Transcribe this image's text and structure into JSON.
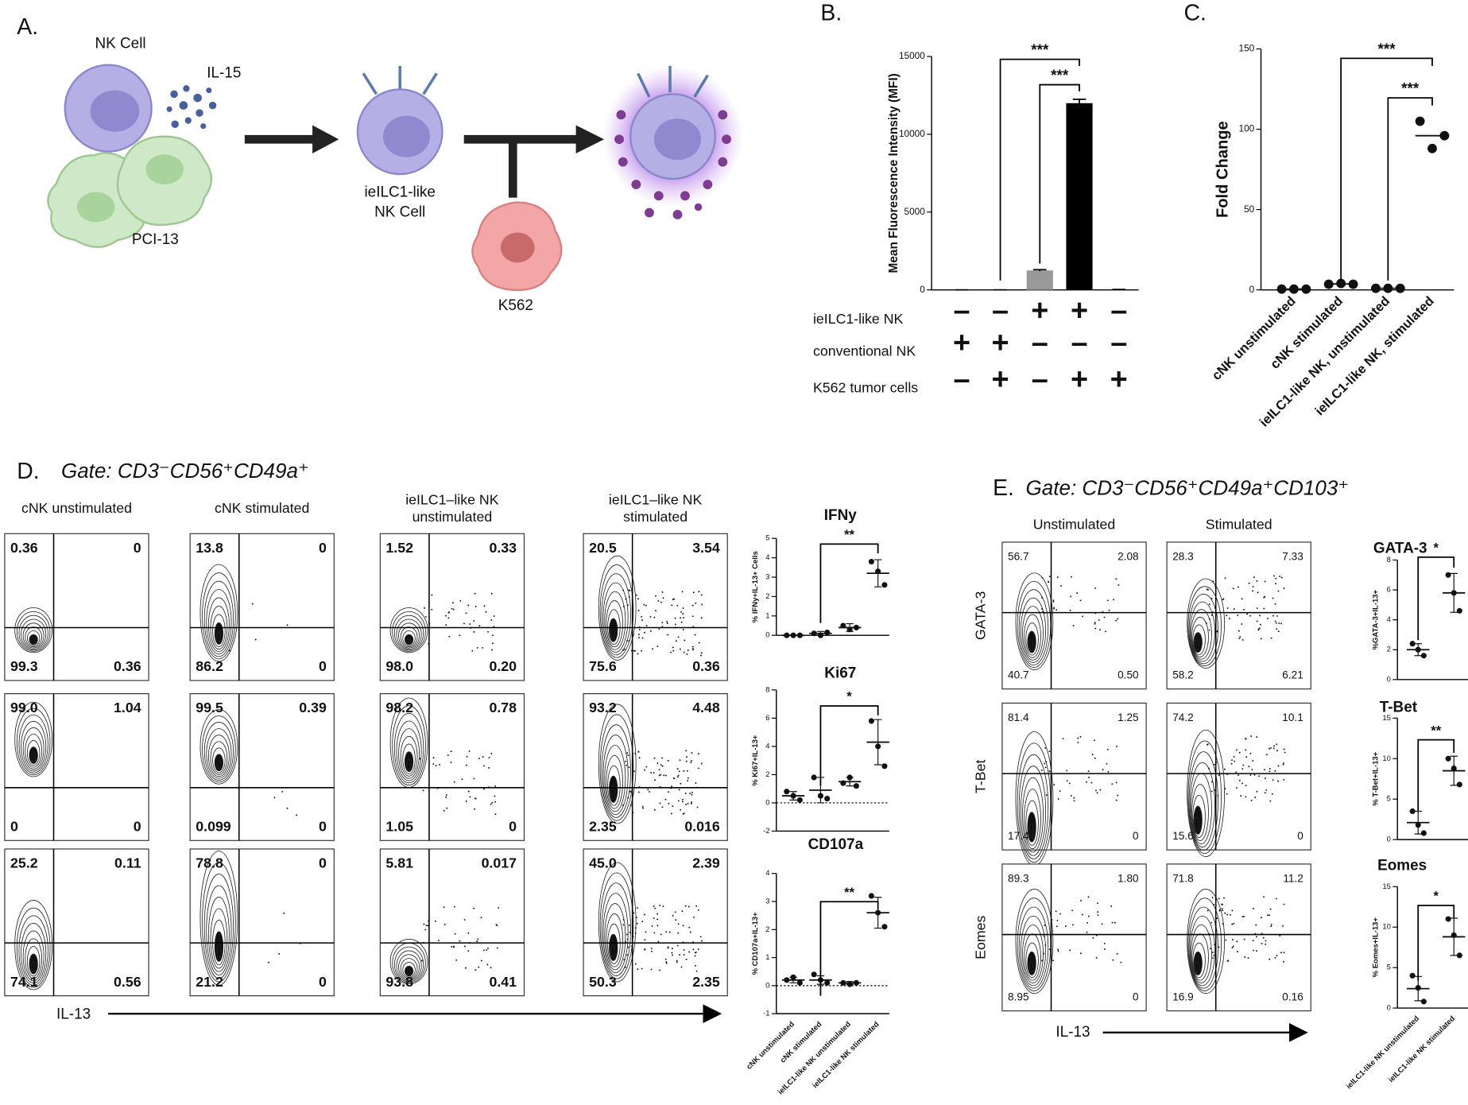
{
  "panel_a": {
    "label": "A.",
    "nk_cell": "NK Cell",
    "cytokine": "IL-15",
    "feeder": "PCI-13",
    "ilc_cell": [
      "ieILC1-like",
      "NK Cell"
    ],
    "target": "K562"
  },
  "chart_data": [
    {
      "type": "bar",
      "label": "B.",
      "y_label": "Mean Fluorescence Intensity (MFI)",
      "categories": [
        null,
        null,
        null,
        null,
        null
      ],
      "values": [
        0,
        0,
        1250,
        12000,
        30
      ],
      "errors": [
        0,
        0,
        50,
        250,
        0
      ],
      "colors": [
        "#000000",
        "#000000",
        "#999999",
        "#000000",
        "#000000"
      ],
      "ylim": [
        0,
        15000
      ],
      "yticks": [
        0,
        5000,
        10000,
        15000
      ],
      "significance": [
        "***",
        "***"
      ],
      "conditions": [
        {
          "label": "ieILC1-like NK",
          "signs": [
            "–",
            "–",
            "+",
            "+",
            "–"
          ]
        },
        {
          "label": "conventional NK",
          "signs": [
            "+",
            "+",
            "–",
            "–",
            "–"
          ]
        },
        {
          "label": "K562 tumor cells",
          "signs": [
            "–",
            "+",
            "–",
            "+",
            "+"
          ]
        }
      ]
    },
    {
      "type": "strip",
      "label": "C.",
      "y_label": "Fold Change",
      "categories": [
        "cNK unstimulated",
        "cNK stimulated",
        "ieILC1-like NK, unstimulated",
        "ieILC1-like NK, stimulated"
      ],
      "values": [
        [
          0.5,
          0.5,
          0.5
        ],
        [
          3.5,
          4,
          3.5
        ],
        [
          1,
          1,
          1
        ],
        [
          105,
          88,
          96
        ]
      ],
      "means": [
        0.5,
        3.7,
        1,
        96
      ],
      "ylim": [
        0,
        150
      ],
      "yticks": [
        0,
        50,
        100,
        150
      ],
      "significance": [
        "***",
        "***"
      ]
    },
    {
      "type": "strip",
      "title": "IFNy",
      "y_label": "% IFNy+IL-13+ Cells",
      "values": [
        [
          0,
          0,
          0
        ],
        [
          0.1,
          0,
          0.15
        ],
        [
          0.5,
          0.3,
          0.4
        ],
        [
          3.8,
          3.3,
          2.6
        ]
      ],
      "means": [
        0,
        0.1,
        0.4,
        3.2
      ],
      "errors": [
        0,
        0.1,
        0.2,
        0.7
      ],
      "ylim": [
        0,
        5
      ],
      "yticks": [
        0,
        1,
        2,
        3,
        4,
        5
      ],
      "significance": [
        "**"
      ]
    },
    {
      "type": "strip",
      "title": "Ki67",
      "y_label": "% Ki67+IL-13+",
      "values": [
        [
          0.8,
          0.5,
          0.2
        ],
        [
          1.8,
          0.5,
          0.3
        ],
        [
          1.4,
          1.8,
          1.2
        ],
        [
          5.8,
          4.0,
          2.6
        ]
      ],
      "means": [
        0.5,
        0.9,
        1.5,
        4.3
      ],
      "errors": [
        0.3,
        0.9,
        0.3,
        1.6
      ],
      "ylim": [
        -2,
        8
      ],
      "yticks": [
        -2,
        0,
        2,
        4,
        6,
        8
      ],
      "significance": [
        "*"
      ]
    },
    {
      "type": "strip",
      "title": "CD107a",
      "y_label": "% CD107a+IL-13+",
      "categories": [
        "cNK unstimulated",
        "cNK stimulated",
        "ieILC1-like NK unstimulated",
        "ieILC1-like NK stimulated"
      ],
      "values": [
        [
          0.2,
          0.3,
          0.1
        ],
        [
          0.4,
          0.2,
          0.1
        ],
        [
          0.1,
          0.05,
          0.1
        ],
        [
          3.2,
          2.6,
          2.1
        ]
      ],
      "means": [
        0.2,
        0.2,
        0.1,
        2.6
      ],
      "errors": [
        0.1,
        0.15,
        0.05,
        0.55
      ],
      "ylim": [
        -1,
        4
      ],
      "yticks": [
        -1,
        0,
        1,
        2,
        3,
        4
      ],
      "significance": [
        "**"
      ]
    },
    {
      "type": "strip",
      "title": "GATA-3",
      "y_label": "%GATA-3+IL-13+",
      "values": [
        [
          2.4,
          2.0,
          1.6
        ],
        [
          7.0,
          5.8,
          4.6
        ]
      ],
      "means": [
        2.0,
        5.8
      ],
      "errors": [
        0.4,
        1.3
      ],
      "ylim": [
        0,
        8
      ],
      "yticks": [
        0,
        2,
        4,
        6,
        8
      ],
      "significance": [
        "*"
      ]
    },
    {
      "type": "strip",
      "title": "T-Bet",
      "y_label": "% T-Bet+IL-13+",
      "values": [
        [
          3.5,
          1.8,
          0.8
        ],
        [
          10,
          8.8,
          6.8
        ]
      ],
      "means": [
        2.1,
        8.5
      ],
      "errors": [
        1.4,
        1.8
      ],
      "ylim": [
        0,
        15
      ],
      "yticks": [
        0,
        5,
        10,
        15
      ],
      "significance": [
        "**"
      ]
    },
    {
      "type": "strip",
      "title": "Eomes",
      "y_label": "% Eomes+IL-13+",
      "categories": [
        "ieILC1-like NK unstimulated",
        "ieILC1-like NK stimulated"
      ],
      "values": [
        [
          4,
          2.5,
          0.8
        ],
        [
          11,
          9,
          6.5
        ]
      ],
      "means": [
        2.4,
        8.8
      ],
      "errors": [
        1.5,
        2.3
      ],
      "ylim": [
        0,
        15
      ],
      "yticks": [
        0,
        5,
        10,
        15
      ],
      "significance": [
        "*"
      ]
    }
  ],
  "panel_d": {
    "label": "D.",
    "gate": "Gate: CD3⁻CD56⁺CD49a⁺",
    "columns": [
      [
        "cNK unstimulated"
      ],
      [
        "cNK stimulated"
      ],
      [
        "ieILC1–like NK",
        "unstimulated"
      ],
      [
        "ieILC1–like NK",
        "stimulated"
      ]
    ],
    "quadrants": [
      [
        [
          "0.36",
          "0",
          "99.3",
          "0.36"
        ],
        [
          "13.8",
          "0",
          "86.2",
          "0"
        ],
        [
          "1.52",
          "0.33",
          "98.0",
          "0.20"
        ],
        [
          "20.5",
          "3.54",
          "75.6",
          "0.36"
        ]
      ],
      [
        [
          "99.0",
          "1.04",
          "0",
          "0"
        ],
        [
          "99.5",
          "0.39",
          "0.099",
          "0"
        ],
        [
          "98.2",
          "0.78",
          "1.05",
          "0"
        ],
        [
          "93.2",
          "4.48",
          "2.35",
          "0.016"
        ]
      ],
      [
        [
          "25.2",
          "0.11",
          "74.1",
          "0.56"
        ],
        [
          "78.8",
          "0",
          "21.2",
          "0"
        ],
        [
          "5.81",
          "0.017",
          "93.8",
          "0.41"
        ],
        [
          "45.0",
          "2.39",
          "50.3",
          "2.35"
        ]
      ]
    ],
    "x_label": "IL-13"
  },
  "panel_e": {
    "label": "E.",
    "gate": "Gate: CD3⁻CD56⁺CD49a⁺CD103⁺",
    "columns": [
      [
        "Unstimulated"
      ],
      [
        "Stimulated"
      ]
    ],
    "rows": [
      "GATA-3",
      "T-Bet",
      "Eomes"
    ],
    "quadrants": [
      [
        [
          "56.7",
          "2.08",
          "40.7",
          "0.50"
        ],
        [
          "28.3",
          "7.33",
          "58.2",
          "6.21"
        ]
      ],
      [
        [
          "81.4",
          "1.25",
          "17.4",
          "0"
        ],
        [
          "74.2",
          "10.1",
          "15.6",
          "0"
        ]
      ],
      [
        [
          "89.3",
          "1.80",
          "8.95",
          "0"
        ],
        [
          "71.8",
          "11.2",
          "16.9",
          "0.16"
        ]
      ]
    ],
    "x_label": "IL-13"
  }
}
